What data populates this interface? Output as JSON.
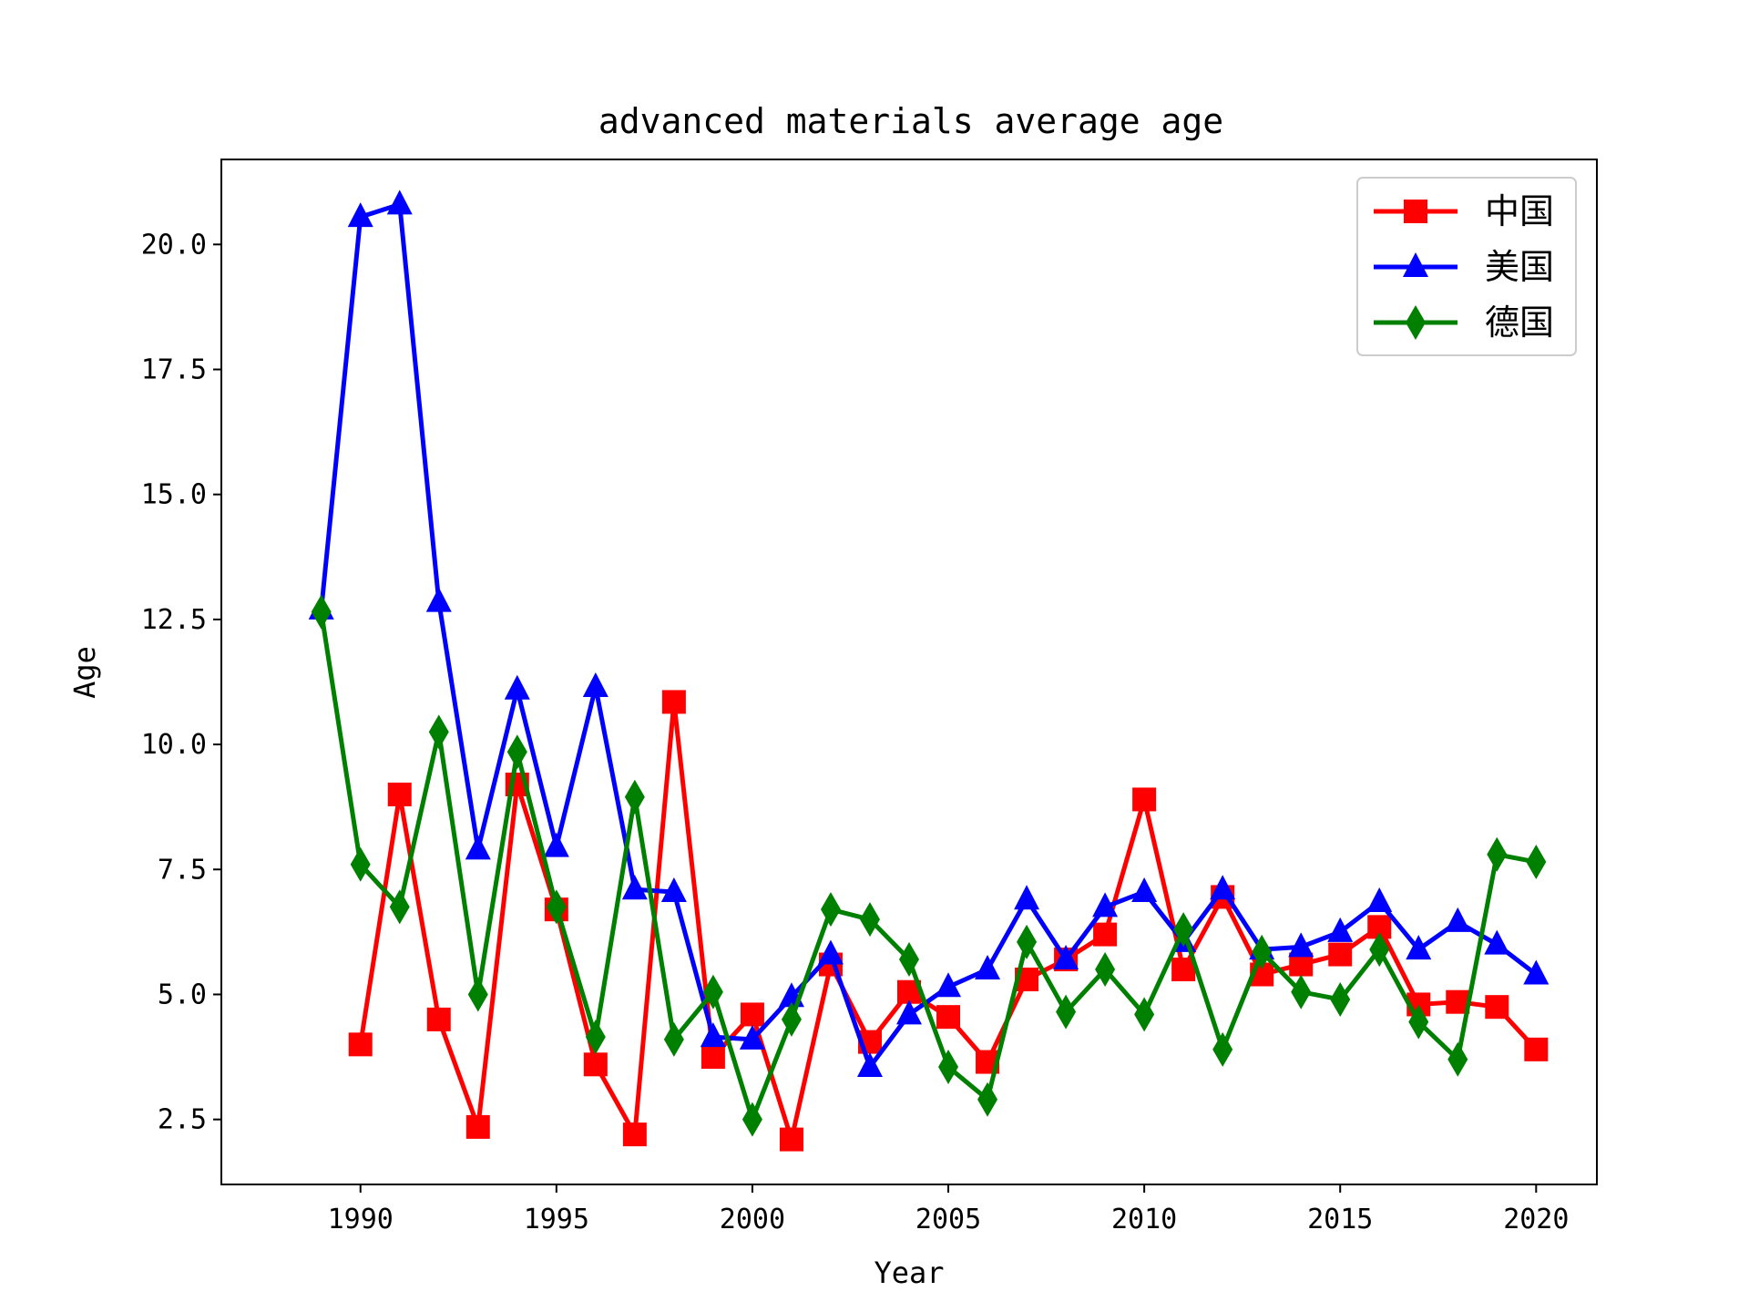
{
  "chart_data": {
    "type": "line",
    "title": "advanced materials average age",
    "xlabel": "Year",
    "ylabel": "Age",
    "xlim": [
      1987.45,
      1990.0
    ],
    "ylim": [
      1.2,
      21.7
    ],
    "x_ticks": [
      "1990",
      "1995",
      "2000",
      "2005",
      "2010",
      "2015",
      "2020"
    ],
    "y_ticks": [
      "2.5",
      "5.0",
      "7.5",
      "10.0",
      "12.5",
      "15.0",
      "17.5",
      "20.0"
    ],
    "grid": false,
    "legend_position": "top-right",
    "x": [
      1989,
      1990,
      1991,
      1992,
      1993,
      1994,
      1995,
      1996,
      1997,
      1998,
      1999,
      2000,
      2001,
      2002,
      2003,
      2004,
      2005,
      2006,
      2007,
      2008,
      2009,
      2010,
      2011,
      2012,
      2013,
      2014,
      2015,
      2016,
      2017,
      2018,
      2019,
      2020
    ],
    "series": [
      {
        "name": "中国",
        "color": "#ff0000",
        "marker": "square",
        "values": [
          null,
          4.0,
          9.0,
          4.5,
          2.35,
          9.2,
          6.7,
          3.6,
          2.2,
          10.85,
          3.75,
          4.6,
          2.1,
          5.6,
          4.05,
          5.05,
          4.55,
          3.65,
          5.3,
          5.7,
          6.2,
          8.9,
          5.5,
          6.95,
          5.4,
          5.6,
          5.8,
          6.35,
          4.8,
          4.85,
          4.75,
          3.9
        ]
      },
      {
        "name": "美国",
        "color": "#0000ff",
        "marker": "triangle",
        "values": [
          12.7,
          20.55,
          20.8,
          12.85,
          7.9,
          11.1,
          7.95,
          11.15,
          7.1,
          7.05,
          4.15,
          4.1,
          4.95,
          5.8,
          3.55,
          4.6,
          5.15,
          5.5,
          6.9,
          5.7,
          6.75,
          7.05,
          6.05,
          7.1,
          5.9,
          5.95,
          6.25,
          6.85,
          5.9,
          6.45,
          6.0,
          5.4
        ]
      },
      {
        "name": "德国",
        "color": "#008000",
        "marker": "diamond",
        "values": [
          12.65,
          7.6,
          6.75,
          10.25,
          5.0,
          9.85,
          6.75,
          4.15,
          8.95,
          4.1,
          5.05,
          2.5,
          4.5,
          6.7,
          6.5,
          5.7,
          3.55,
          2.9,
          6.05,
          4.65,
          5.5,
          4.6,
          6.3,
          3.9,
          5.85,
          5.05,
          4.9,
          5.9,
          4.45,
          3.7,
          7.8,
          7.65
        ]
      }
    ]
  }
}
